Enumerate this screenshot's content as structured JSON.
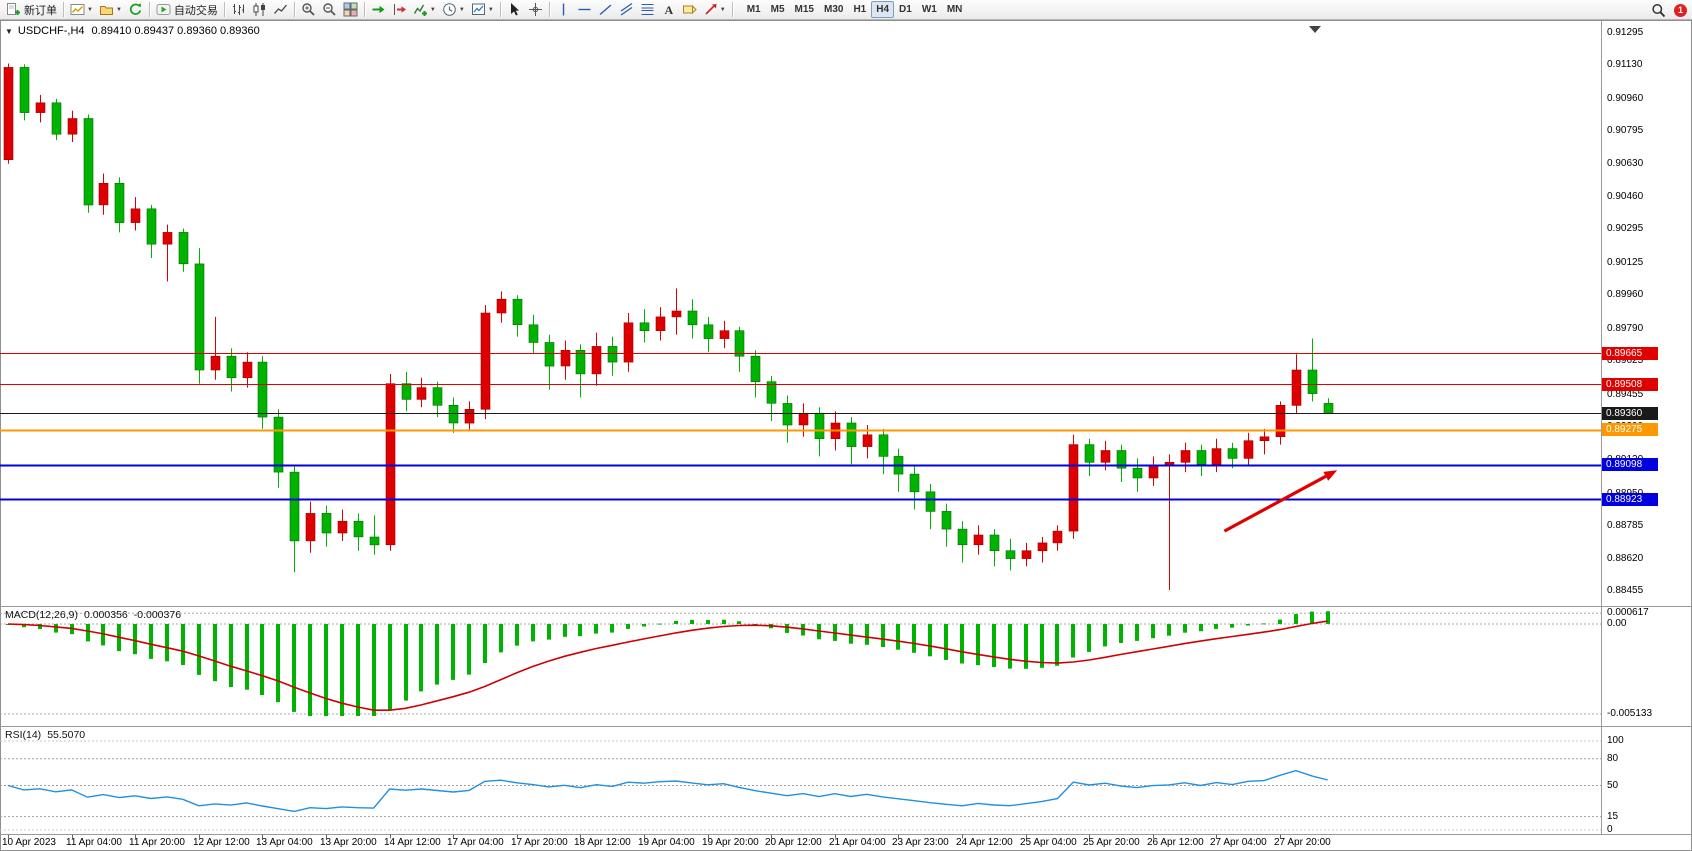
{
  "toolbar": {
    "items": [
      {
        "name": "new-order-button",
        "icon": "new-order-icon",
        "label": "新订单"
      },
      {
        "sep": true
      },
      {
        "name": "new-chart-button",
        "icon": "new-chart-icon",
        "caret": true
      },
      {
        "name": "profiles-button",
        "icon": "profiles-icon",
        "caret": true
      },
      {
        "name": "refresh-button",
        "icon": "refresh-icon"
      },
      {
        "sep": true
      },
      {
        "name": "autotrading-button",
        "icon": "autotrading-icon",
        "label": "自动交易"
      },
      {
        "sep": true
      },
      {
        "name": "bar-chart-button",
        "icon": "bar-chart-icon"
      },
      {
        "name": "candlestick-button",
        "icon": "candlestick-icon"
      },
      {
        "name": "line-chart-button",
        "icon": "line-chart-icon"
      },
      {
        "sep": true
      },
      {
        "name": "zoom-in-button",
        "icon": "zoom-in-icon"
      },
      {
        "name": "zoom-out-button",
        "icon": "zoom-out-icon"
      },
      {
        "name": "tile-windows-button",
        "icon": "tile-windows-icon"
      },
      {
        "sep": true
      },
      {
        "name": "auto-scroll-button",
        "icon": "auto-scroll-icon"
      },
      {
        "name": "chart-shift-button",
        "icon": "chart-shift-icon"
      },
      {
        "name": "indicators-button",
        "icon": "indicators-icon",
        "caret": true
      },
      {
        "name": "periods-button",
        "icon": "periods-icon",
        "caret": true
      },
      {
        "name": "templates-button",
        "icon": "templates-icon",
        "caret": true
      },
      {
        "sep": true
      },
      {
        "name": "cursor-button",
        "icon": "cursor-icon"
      },
      {
        "name": "crosshair-button",
        "icon": "crosshair-icon"
      },
      {
        "sep": true
      },
      {
        "name": "vertical-line-button",
        "icon": "vertical-line-icon"
      },
      {
        "name": "horizontal-line-button",
        "icon": "horizontal-line-icon"
      },
      {
        "name": "trendline-button",
        "icon": "trendline-icon"
      },
      {
        "name": "channel-button",
        "icon": "channel-icon"
      },
      {
        "name": "fibonacci-button",
        "icon": "fibonacci-icon"
      },
      {
        "name": "text-button",
        "icon": "text-icon"
      },
      {
        "name": "label-button",
        "icon": "label-icon"
      },
      {
        "name": "arrows-button",
        "icon": "arrows-icon",
        "caret": true
      },
      {
        "sep": true
      }
    ],
    "timeframes": [
      "M1",
      "M5",
      "M15",
      "M30",
      "H1",
      "H4",
      "D1",
      "W1",
      "MN"
    ],
    "active_timeframe": "H4",
    "notification_badge": "1"
  },
  "chart": {
    "symbol_period": "USDCHF-,H4",
    "ohlc_text": "0.89410 0.89437 0.89360 0.89360"
  },
  "chart_data": {
    "type": "candlestick",
    "symbol": "USDCHF-",
    "timeframe": "H4",
    "up_color": "#dd0000",
    "down_color": "#00b300",
    "current_ohlc": {
      "open": "0.89410",
      "high": "0.89437",
      "low": "0.89360",
      "close": "0.89360"
    },
    "price_ticks": [
      "0.91295",
      "0.91130",
      "0.90960",
      "0.90795",
      "0.90630",
      "0.90460",
      "0.90295",
      "0.90125",
      "0.89960",
      "0.89790",
      "0.89625",
      "0.89455",
      "0.89290",
      "0.89120",
      "0.88950",
      "0.88785",
      "0.88620",
      "0.88455"
    ],
    "time_labels": [
      "10 Apr 2023",
      "11 Apr 04:00",
      "11 Apr 20:00",
      "12 Apr 12:00",
      "13 Apr 04:00",
      "13 Apr 20:00",
      "14 Apr 12:00",
      "17 Apr 04:00",
      "17 Apr 20:00",
      "18 Apr 12:00",
      "19 Apr 04:00",
      "19 Apr 20:00",
      "20 Apr 12:00",
      "21 Apr 04:00",
      "23 Apr 23:00",
      "24 Apr 12:00",
      "25 Apr 04:00",
      "25 Apr 20:00",
      "26 Apr 12:00",
      "27 Apr 04:00",
      "27 Apr 20:00"
    ],
    "candles": [
      [
        0.9065,
        0.9114,
        0.9063,
        0.9112
      ],
      [
        0.9112,
        0.91135,
        0.9085,
        0.9089
      ],
      [
        0.9089,
        0.9098,
        0.9084,
        0.9094
      ],
      [
        0.9094,
        0.9096,
        0.9075,
        0.9078
      ],
      [
        0.9078,
        0.909,
        0.9074,
        0.9086
      ],
      [
        0.9086,
        0.9088,
        0.9038,
        0.9042
      ],
      [
        0.9042,
        0.9058,
        0.9037,
        0.9053
      ],
      [
        0.9053,
        0.9056,
        0.9028,
        0.9033
      ],
      [
        0.9033,
        0.9046,
        0.9029,
        0.904
      ],
      [
        0.904,
        0.9042,
        0.9015,
        0.9022
      ],
      [
        0.9022,
        0.9032,
        0.9003,
        0.9028
      ],
      [
        0.9028,
        0.903,
        0.9008,
        0.9012
      ],
      [
        0.9012,
        0.902,
        0.8951,
        0.8958
      ],
      [
        0.8958,
        0.8985,
        0.8953,
        0.8965
      ],
      [
        0.8965,
        0.8969,
        0.8947,
        0.8954
      ],
      [
        0.8954,
        0.8967,
        0.8949,
        0.8962
      ],
      [
        0.8962,
        0.8965,
        0.8928,
        0.8934
      ],
      [
        0.8934,
        0.8938,
        0.8898,
        0.8906
      ],
      [
        0.8906,
        0.8909,
        0.8855,
        0.8871
      ],
      [
        0.8871,
        0.8891,
        0.8865,
        0.8885
      ],
      [
        0.8885,
        0.8889,
        0.8868,
        0.8875
      ],
      [
        0.8875,
        0.8887,
        0.8871,
        0.8881
      ],
      [
        0.8881,
        0.8885,
        0.8866,
        0.8873
      ],
      [
        0.8873,
        0.8884,
        0.8864,
        0.8869
      ],
      [
        0.8869,
        0.8956,
        0.8866,
        0.8951
      ],
      [
        0.8951,
        0.8957,
        0.8937,
        0.8943
      ],
      [
        0.8943,
        0.8954,
        0.8939,
        0.8949
      ],
      [
        0.8949,
        0.8952,
        0.8934,
        0.894
      ],
      [
        0.894,
        0.8944,
        0.8926,
        0.8931
      ],
      [
        0.8931,
        0.8942,
        0.8927,
        0.8938
      ],
      [
        0.8938,
        0.8991,
        0.8933,
        0.8987
      ],
      [
        0.8987,
        0.8998,
        0.8982,
        0.8994
      ],
      [
        0.8994,
        0.8996,
        0.8975,
        0.8981
      ],
      [
        0.8981,
        0.8986,
        0.8966,
        0.8972
      ],
      [
        0.8972,
        0.8976,
        0.8948,
        0.896
      ],
      [
        0.896,
        0.8973,
        0.8953,
        0.8968
      ],
      [
        0.8968,
        0.8971,
        0.8944,
        0.8956
      ],
      [
        0.8956,
        0.8977,
        0.895,
        0.897
      ],
      [
        0.897,
        0.8975,
        0.8955,
        0.8962
      ],
      [
        0.8962,
        0.8987,
        0.8957,
        0.8982
      ],
      [
        0.8982,
        0.8989,
        0.8972,
        0.8978
      ],
      [
        0.8978,
        0.899,
        0.8973,
        0.8985
      ],
      [
        0.8985,
        0.89995,
        0.8976,
        0.8988
      ],
      [
        0.8988,
        0.8994,
        0.8974,
        0.8981
      ],
      [
        0.8981,
        0.8985,
        0.8967,
        0.8974
      ],
      [
        0.8974,
        0.8983,
        0.8969,
        0.8978
      ],
      [
        0.8978,
        0.898,
        0.8957,
        0.8965
      ],
      [
        0.8965,
        0.8968,
        0.8944,
        0.8952
      ],
      [
        0.8952,
        0.8955,
        0.8932,
        0.8941
      ],
      [
        0.8941,
        0.8945,
        0.8921,
        0.893
      ],
      [
        0.893,
        0.8941,
        0.8924,
        0.8936
      ],
      [
        0.8936,
        0.8939,
        0.8914,
        0.8923
      ],
      [
        0.8923,
        0.8937,
        0.8917,
        0.8931
      ],
      [
        0.8931,
        0.8934,
        0.891,
        0.8919
      ],
      [
        0.8919,
        0.893,
        0.8913,
        0.8925
      ],
      [
        0.8925,
        0.8928,
        0.8905,
        0.8914
      ],
      [
        0.8914,
        0.8918,
        0.8896,
        0.8905
      ],
      [
        0.8905,
        0.8909,
        0.8887,
        0.8896
      ],
      [
        0.8896,
        0.89,
        0.8877,
        0.8886
      ],
      [
        0.8886,
        0.889,
        0.8868,
        0.8877
      ],
      [
        0.8877,
        0.8881,
        0.886,
        0.8869
      ],
      [
        0.8869,
        0.8879,
        0.8864,
        0.8874
      ],
      [
        0.8874,
        0.8877,
        0.8858,
        0.8866
      ],
      [
        0.8866,
        0.8872,
        0.8856,
        0.8862
      ],
      [
        0.8862,
        0.887,
        0.8858,
        0.8866
      ],
      [
        0.8866,
        0.8873,
        0.886,
        0.887
      ],
      [
        0.887,
        0.8879,
        0.8866,
        0.8876
      ],
      [
        0.8876,
        0.8925,
        0.8872,
        0.892
      ],
      [
        0.892,
        0.8923,
        0.8904,
        0.8911
      ],
      [
        0.8911,
        0.8922,
        0.8907,
        0.8917
      ],
      [
        0.8917,
        0.892,
        0.8901,
        0.8908
      ],
      [
        0.8908,
        0.8913,
        0.8896,
        0.8903
      ],
      [
        0.8903,
        0.8914,
        0.8899,
        0.8909
      ],
      [
        0.8909,
        0.8915,
        0.8846,
        0.8911
      ],
      [
        0.8911,
        0.8921,
        0.8906,
        0.8917
      ],
      [
        0.8917,
        0.892,
        0.8904,
        0.891
      ],
      [
        0.891,
        0.8923,
        0.8906,
        0.8918
      ],
      [
        0.8918,
        0.8921,
        0.8908,
        0.8913
      ],
      [
        0.8913,
        0.8926,
        0.8909,
        0.8922
      ],
      [
        0.8922,
        0.8928,
        0.8915,
        0.8924
      ],
      [
        0.8924,
        0.8942,
        0.892,
        0.894
      ],
      [
        0.894,
        0.8966,
        0.8936,
        0.8958
      ],
      [
        0.8958,
        0.8974,
        0.8942,
        0.8946
      ],
      [
        0.8941,
        0.89437,
        0.8936,
        0.8936
      ]
    ],
    "levels": [
      {
        "price": 0.89665,
        "label": "0.89665",
        "color": "#e00000",
        "width": 1
      },
      {
        "price": 0.89508,
        "label": "0.89508",
        "color": "#e00000",
        "width": 1
      },
      {
        "price": 0.8936,
        "label": "0.89360",
        "color": "#1a1a1a",
        "width": 1
      },
      {
        "price": 0.89275,
        "label": "0.89275",
        "color": "#ff9800",
        "width": 2
      },
      {
        "price": 0.89098,
        "label": "0.89098",
        "color": "#0000e0",
        "width": 2
      },
      {
        "price": 0.88923,
        "label": "0.88923",
        "color": "#0000e0",
        "width": 2
      }
    ],
    "trend_arrow": {
      "from_bar": 76.5,
      "from_price": 0.8876,
      "to_bar": 83.6,
      "to_price": 0.8907,
      "color": "#e00000"
    },
    "macd": {
      "label": "MACD(12,26,9)",
      "value_text": "0.000356",
      "signal_text": "-0.000376",
      "scale_ticks": [
        "0.000617",
        "0.00",
        "-0.005133"
      ],
      "histogram_color": "#00b300",
      "signal_color": "#d00000",
      "params": {
        "fast": 12,
        "slow": 26,
        "signal": 9
      }
    },
    "rsi": {
      "label": "RSI(14)",
      "value_text": "55.5070",
      "scale_ticks": [
        "100",
        "80",
        "50",
        "15",
        "0"
      ],
      "levels": [
        80,
        50,
        15
      ],
      "line_color": "#2090e0",
      "period": 14
    }
  }
}
